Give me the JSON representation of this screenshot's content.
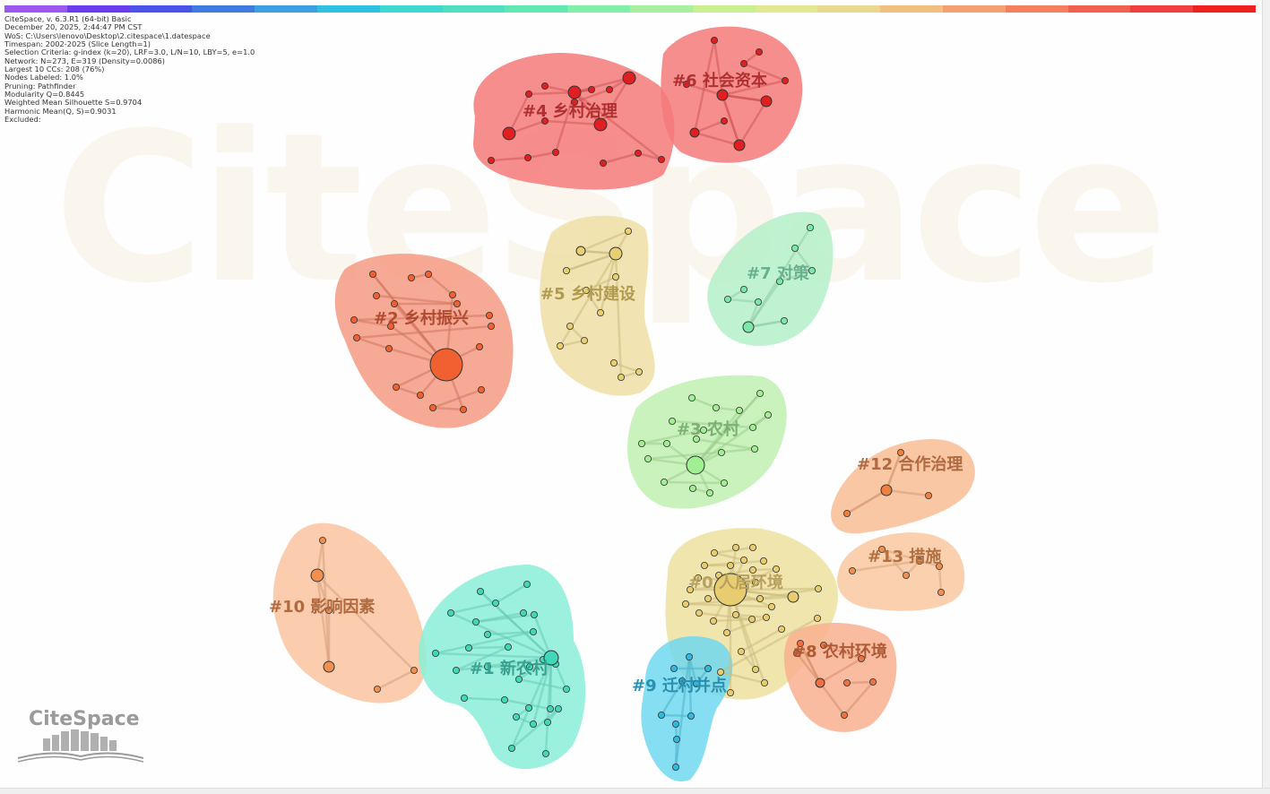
{
  "info_lines": [
    "CiteSpace, v. 6.3.R1 (64-bit) Basic",
    "December 20, 2025, 2:44:47 PM CST",
    "WoS: C:\\Users\\lenovo\\Desktop\\2.citespace\\1.datespace",
    "Timespan: 2002-2025 (Slice Length=1)",
    "Selection Criteria: g-index (k=20), LRF=3.0, L/N=10, LBY=5, e=1.0",
    "Network: N=273, E=319 (Density=0.0086)",
    "Largest 10 CCs: 208 (76%)",
    "Nodes Labeled: 1.0%",
    "Pruning: Pathfinder",
    "Modularity Q=0.8445",
    "Weighted Mean Silhouette S=0.9704",
    "Harmonic Mean(Q, S)=0.9031",
    "Excluded:"
  ],
  "timeline_colors": [
    "#9b59f0",
    "#6a3cf0",
    "#4a55e8",
    "#3f7be0",
    "#3aa0e0",
    "#30c0e0",
    "#40d8d0",
    "#50e0c0",
    "#60e8b0",
    "#80f0a8",
    "#a8f0a0",
    "#c8f090",
    "#e0e890",
    "#e8d890",
    "#f0c080",
    "#f4a070",
    "#f48060",
    "#f06050",
    "#ee4040",
    "#ee2020"
  ],
  "logo_text": "CiteSpace",
  "watermark_text": "CiteSpace",
  "clusters": [
    {
      "id": "c4",
      "label": "#4 乡村治理",
      "fill": "#f47a7a",
      "label_color": "#b03030",
      "node_color": "#e02020"
    },
    {
      "id": "c6",
      "label": "#6 社会资本",
      "fill": "#f47a7a",
      "label_color": "#b03030",
      "node_color": "#e02020"
    },
    {
      "id": "c2",
      "label": "#2 乡村振兴",
      "fill": "#f59a82",
      "label_color": "#b04a30",
      "node_color": "#f06030"
    },
    {
      "id": "c5",
      "label": "#5 乡村建设",
      "fill": "#eedfa4",
      "label_color": "#b09a50",
      "node_color": "#e8d070"
    },
    {
      "id": "c7",
      "label": "#7 对策",
      "fill": "#b4f0c8",
      "label_color": "#6ab090",
      "node_color": "#7ae8a8"
    },
    {
      "id": "c3",
      "label": "#3 农村",
      "fill": "#bff0b0",
      "label_color": "#7ab070",
      "node_color": "#9ef090"
    },
    {
      "id": "c12",
      "label": "#12 合作治理",
      "fill": "#f9bd95",
      "label_color": "#b06a40",
      "node_color": "#f08040"
    },
    {
      "id": "c13",
      "label": "#13 措施",
      "fill": "#fac8a0",
      "label_color": "#b07040",
      "node_color": "#f09050"
    },
    {
      "id": "c0",
      "label": "#0 人居环境",
      "fill": "#efe0a0",
      "label_color": "#b8a060",
      "node_color": "#e8cc70"
    },
    {
      "id": "c8",
      "label": "#8 农村环境",
      "fill": "#f9b08f",
      "label_color": "#b05a35",
      "node_color": "#f07040"
    },
    {
      "id": "c10",
      "label": "#10 影响因素",
      "fill": "#fac4a0",
      "label_color": "#b06a40",
      "node_color": "#f09050"
    },
    {
      "id": "c1",
      "label": "#1 新农村",
      "fill": "#8aeed8",
      "label_color": "#3aa090",
      "node_color": "#40d8b8"
    },
    {
      "id": "c9",
      "label": "#9 迁村并点",
      "fill": "#70d8ee",
      "label_color": "#2a90b0",
      "node_color": "#30b8e0"
    }
  ]
}
